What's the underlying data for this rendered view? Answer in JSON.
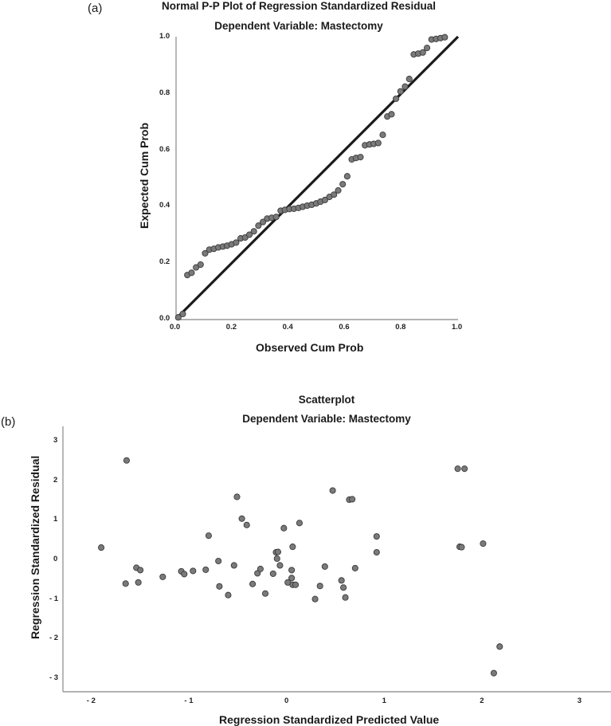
{
  "panel_a": {
    "label": "(a)",
    "title": "Normal P-P Plot of Regression Standardized Residual",
    "subtitle": "Dependent Variable: Mastectomy",
    "xlabel": "Observed Cum Prob",
    "ylabel": "Expected Cum Prob",
    "xticks": [
      "0.0",
      "0.2",
      "0.4",
      "0.6",
      "0.8",
      "1.0"
    ],
    "yticks": [
      "0.0",
      "0.2",
      "0.4",
      "0.6",
      "0.8",
      "1.0"
    ]
  },
  "panel_b": {
    "label": "(b)",
    "title": "Scatterplot",
    "subtitle": "Dependent Variable: Mastectomy",
    "xlabel": "Regression Standardized Predicted Value",
    "ylabel": "Regression Standardized Residual",
    "xticks": [
      "- 2",
      "- 1",
      "0",
      "1",
      "2",
      "3"
    ],
    "yticks": [
      "3",
      "2",
      "1",
      "0",
      "- 1",
      "- 2",
      "- 3"
    ]
  },
  "colors": {
    "point_fill": "#7a7a7a",
    "point_stroke": "#3a3a3a",
    "line": "#1a1a1a",
    "axis": "#888888"
  },
  "chart_data": [
    {
      "type": "scatter",
      "title": "Normal P-P Plot of Regression Standardized Residual",
      "subtitle": "Dependent Variable: Mastectomy",
      "xlabel": "Observed Cum Prob",
      "ylabel": "Expected Cum Prob",
      "xlim": [
        0,
        1
      ],
      "ylim": [
        0,
        1
      ],
      "grid": false,
      "reference_line": {
        "from": [
          0,
          0
        ],
        "to": [
          1,
          1
        ]
      },
      "points": [
        [
          0.008,
          0.005
        ],
        [
          0.024,
          0.017
        ],
        [
          0.04,
          0.155
        ],
        [
          0.055,
          0.163
        ],
        [
          0.071,
          0.182
        ],
        [
          0.087,
          0.192
        ],
        [
          0.103,
          0.232
        ],
        [
          0.118,
          0.245
        ],
        [
          0.134,
          0.248
        ],
        [
          0.15,
          0.253
        ],
        [
          0.166,
          0.256
        ],
        [
          0.181,
          0.259
        ],
        [
          0.197,
          0.264
        ],
        [
          0.213,
          0.27
        ],
        [
          0.229,
          0.285
        ],
        [
          0.245,
          0.288
        ],
        [
          0.26,
          0.298
        ],
        [
          0.276,
          0.31
        ],
        [
          0.292,
          0.33
        ],
        [
          0.308,
          0.343
        ],
        [
          0.323,
          0.355
        ],
        [
          0.339,
          0.358
        ],
        [
          0.355,
          0.361
        ],
        [
          0.371,
          0.383
        ],
        [
          0.386,
          0.386
        ],
        [
          0.402,
          0.389
        ],
        [
          0.418,
          0.39
        ],
        [
          0.434,
          0.393
        ],
        [
          0.449,
          0.397
        ],
        [
          0.465,
          0.401
        ],
        [
          0.481,
          0.404
        ],
        [
          0.497,
          0.409
        ],
        [
          0.512,
          0.415
        ],
        [
          0.528,
          0.421
        ],
        [
          0.544,
          0.432
        ],
        [
          0.56,
          0.44
        ],
        [
          0.575,
          0.455
        ],
        [
          0.591,
          0.477
        ],
        [
          0.607,
          0.505
        ],
        [
          0.623,
          0.565
        ],
        [
          0.638,
          0.57
        ],
        [
          0.654,
          0.573
        ],
        [
          0.67,
          0.615
        ],
        [
          0.686,
          0.618
        ],
        [
          0.701,
          0.62
        ],
        [
          0.717,
          0.623
        ],
        [
          0.733,
          0.652
        ],
        [
          0.749,
          0.717
        ],
        [
          0.764,
          0.725
        ],
        [
          0.78,
          0.78
        ],
        [
          0.796,
          0.806
        ],
        [
          0.812,
          0.823
        ],
        [
          0.827,
          0.85
        ],
        [
          0.843,
          0.937
        ],
        [
          0.859,
          0.94
        ],
        [
          0.875,
          0.944
        ],
        [
          0.89,
          0.96
        ],
        [
          0.906,
          0.99
        ],
        [
          0.922,
          0.992
        ],
        [
          0.938,
          0.995
        ],
        [
          0.953,
          0.998
        ]
      ]
    },
    {
      "type": "scatter",
      "title": "Scatterplot",
      "subtitle": "Dependent Variable: Mastectomy",
      "xlabel": "Regression Standardized Predicted Value",
      "ylabel": "Regression Standardized Residual",
      "xlim": [
        -2.3,
        3.3
      ],
      "ylim": [
        -3.3,
        3.3
      ],
      "grid": false,
      "points": [
        [
          -1.9,
          0.3
        ],
        [
          -1.64,
          2.5
        ],
        [
          -1.65,
          -0.61
        ],
        [
          -1.54,
          -0.21
        ],
        [
          -1.5,
          -0.27
        ],
        [
          -1.52,
          -0.58
        ],
        [
          -1.27,
          -0.44
        ],
        [
          -1.08,
          -0.3
        ],
        [
          -1.05,
          -0.37
        ],
        [
          -0.96,
          -0.29
        ],
        [
          -0.83,
          -0.26
        ],
        [
          -0.8,
          0.6
        ],
        [
          -0.7,
          -0.04
        ],
        [
          -0.69,
          -0.68
        ],
        [
          -0.6,
          -0.9
        ],
        [
          -0.54,
          -0.15
        ],
        [
          -0.51,
          1.58
        ],
        [
          -0.46,
          1.03
        ],
        [
          -0.41,
          0.87
        ],
        [
          -0.35,
          -0.62
        ],
        [
          -0.3,
          -0.35
        ],
        [
          -0.27,
          -0.24
        ],
        [
          -0.22,
          -0.86
        ],
        [
          -0.14,
          -0.36
        ],
        [
          -0.11,
          0.18
        ],
        [
          -0.09,
          0.19
        ],
        [
          -0.1,
          0.02
        ],
        [
          -0.07,
          -0.15
        ],
        [
          -0.03,
          0.79
        ],
        [
          0.01,
          -0.58
        ],
        [
          0.05,
          -0.47
        ],
        [
          0.06,
          0.32
        ],
        [
          0.05,
          -0.27
        ],
        [
          0.06,
          -0.64
        ],
        [
          0.09,
          -0.64
        ],
        [
          0.13,
          0.92
        ],
        [
          0.29,
          -1.0
        ],
        [
          0.34,
          -0.67
        ],
        [
          0.39,
          -0.18
        ],
        [
          0.47,
          1.74
        ],
        [
          0.56,
          -0.53
        ],
        [
          0.58,
          -0.71
        ],
        [
          0.6,
          -0.96
        ],
        [
          0.64,
          1.51
        ],
        [
          0.67,
          1.52
        ],
        [
          0.7,
          -0.22
        ],
        [
          0.92,
          0.58
        ],
        [
          0.92,
          0.18
        ],
        [
          1.75,
          2.29
        ],
        [
          1.82,
          2.29
        ],
        [
          1.77,
          0.32
        ],
        [
          1.79,
          0.31
        ],
        [
          2.01,
          0.4
        ],
        [
          2.12,
          -2.87
        ],
        [
          2.18,
          -2.2
        ]
      ]
    }
  ]
}
